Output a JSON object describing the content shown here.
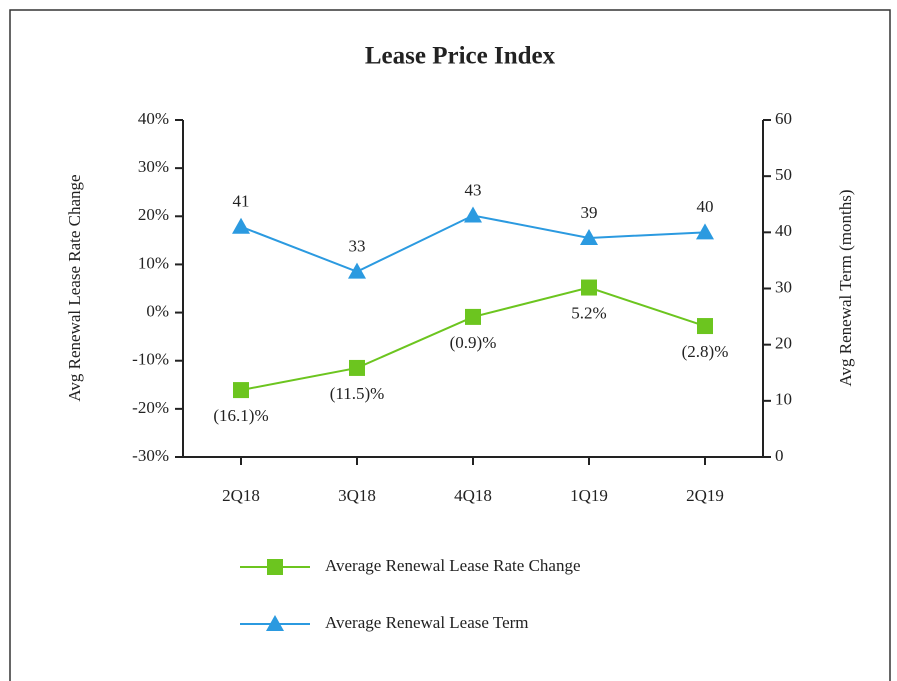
{
  "chart_data": {
    "type": "line",
    "title": "Lease Price Index",
    "y_label": "Avg Renewal Lease Rate Change",
    "y2_label": "Avg Renewal Term (months)",
    "categories": [
      "2Q18",
      "3Q18",
      "4Q18",
      "1Q19",
      "2Q19"
    ],
    "series": [
      {
        "name": "Average Renewal Lease Rate Change",
        "color": "#6cc51f",
        "marker": "square",
        "values": [
          -16.1,
          -11.5,
          -0.9,
          5.2,
          -2.8
        ],
        "value_labels": [
          "(16.1)%",
          "(11.5)%",
          "(0.9)%",
          "5.2%",
          "(2.8)%"
        ]
      },
      {
        "name": "Average Renewal Lease Term",
        "color": "#2b9ae0",
        "marker": "triangle",
        "axis": "y2",
        "values": [
          41,
          33,
          43,
          39,
          40
        ]
      }
    ],
    "ylim": [
      -30,
      40
    ],
    "yticks": [
      {
        "value": -30,
        "label": "-30%"
      },
      {
        "value": -20,
        "label": "-20%"
      },
      {
        "value": -10,
        "label": "-10%"
      },
      {
        "value": 0,
        "label": "0%"
      },
      {
        "value": 10,
        "label": "10%"
      },
      {
        "value": 20,
        "label": "20%"
      },
      {
        "value": 30,
        "label": "30%"
      },
      {
        "value": 40,
        "label": "40%"
      }
    ],
    "y2lim": [
      0,
      60
    ],
    "y2ticks": [
      0,
      10,
      20,
      30,
      40,
      50,
      60
    ],
    "grid": false,
    "legend": "bottom"
  }
}
